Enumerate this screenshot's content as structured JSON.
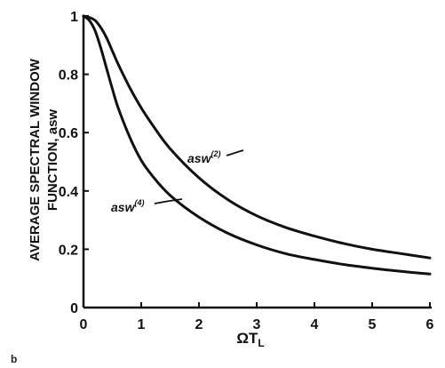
{
  "chart_data": {
    "type": "line",
    "ylabel_line1": "AVERAGE SPECTRAL WINDOW",
    "ylabel_line2": "FUNCTION, asw",
    "xlabel_main": "ΩT",
    "xlabel_sub": "L",
    "xlim": [
      0,
      6
    ],
    "ylim": [
      0,
      1
    ],
    "xticks": [
      "0",
      "1",
      "2",
      "3",
      "4",
      "5",
      "6"
    ],
    "yticks": [
      "0",
      "0.2",
      "0.4",
      "0.6",
      "0.8",
      "1"
    ],
    "grid": false,
    "series": [
      {
        "name": "asw(2)",
        "x": [
          0,
          0.1,
          0.2,
          0.3,
          0.4,
          0.5,
          0.6,
          0.8,
          1.0,
          1.2,
          1.5,
          2.0,
          2.5,
          3.0,
          3.5,
          4.0,
          4.5,
          5.0,
          5.5,
          6.0
        ],
        "values": [
          1.0,
          0.995,
          0.985,
          0.96,
          0.925,
          0.88,
          0.835,
          0.755,
          0.685,
          0.625,
          0.545,
          0.445,
          0.37,
          0.315,
          0.275,
          0.245,
          0.22,
          0.2,
          0.185,
          0.17
        ]
      },
      {
        "name": "asw(4)",
        "x": [
          0,
          0.1,
          0.2,
          0.3,
          0.4,
          0.5,
          0.6,
          0.8,
          1.0,
          1.2,
          1.5,
          2.0,
          2.5,
          3.0,
          3.5,
          4.0,
          4.5,
          5.0,
          5.5,
          6.0
        ],
        "values": [
          1.0,
          0.985,
          0.95,
          0.89,
          0.82,
          0.75,
          0.685,
          0.585,
          0.505,
          0.45,
          0.385,
          0.31,
          0.255,
          0.215,
          0.185,
          0.165,
          0.148,
          0.135,
          0.124,
          0.115
        ]
      }
    ],
    "annotations": [
      {
        "series": "asw(2)",
        "base": "asw",
        "sup": "(2)"
      },
      {
        "series": "asw(4)",
        "base": "asw",
        "sup": "(4)"
      }
    ]
  },
  "stray_marks": [
    "b"
  ]
}
